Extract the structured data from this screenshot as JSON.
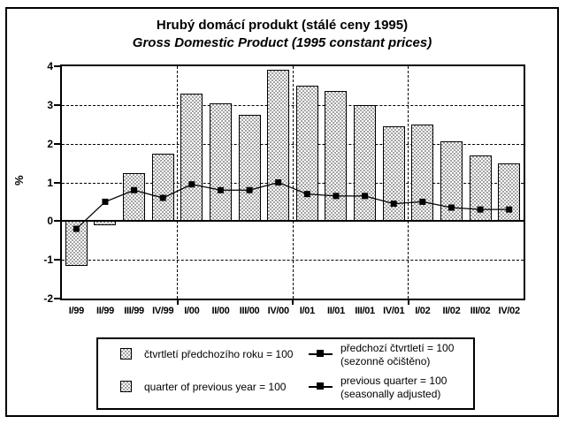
{
  "title": "Hrubý domácí produkt (stálé ceny 1995)",
  "subtitle": "Gross Domestic Product (1995 constant prices)",
  "chart_data": {
    "type": "bar",
    "title": "Hrubý domácí produkt (stálé ceny 1995) / Gross Domestic Product (1995 constant prices)",
    "categories": [
      "I/99",
      "II/99",
      "III/99",
      "IV/99",
      "I/00",
      "II/00",
      "III/00",
      "IV/00",
      "I/01",
      "II/01",
      "III/01",
      "IV/01",
      "I/02",
      "II/02",
      "III/02",
      "IV/02"
    ],
    "series": [
      {
        "name": "čtvrtletí předchozího roku = 100 (quarter of previous year = 100)",
        "type": "bar",
        "values": [
          -1.15,
          -0.1,
          1.25,
          1.75,
          3.3,
          3.05,
          2.75,
          3.9,
          3.5,
          3.35,
          3.0,
          2.45,
          2.5,
          2.05,
          1.7,
          1.5
        ]
      },
      {
        "name": "předchozí čtvrtletí = 100, sezonně očištěno (previous quarter = 100, seasonally adjusted)",
        "type": "line",
        "values": [
          -0.2,
          0.5,
          0.8,
          0.6,
          0.95,
          0.8,
          0.8,
          1.0,
          0.7,
          0.65,
          0.65,
          0.45,
          0.5,
          0.35,
          0.3,
          0.3
        ]
      }
    ],
    "xlabel": "",
    "ylabel": "%",
    "ylim": [
      -2,
      4
    ],
    "yticks": [
      4,
      3,
      2,
      1,
      0,
      -1,
      -2
    ],
    "ygrid_dashed": [
      3,
      2,
      1,
      -1
    ],
    "xgrid_dashed_after_category": [
      4,
      8,
      12
    ],
    "grid": "horizontal dashed at integers, vertical dashed at year boundaries",
    "legend_position": "bottom"
  },
  "legend": {
    "bar_cs": "čtvrtletí předchozího roku = 100",
    "bar_en": "quarter of previous year = 100",
    "line_cs": "předchozí čtvrtletí = 100",
    "line_cs_note": "(sezonně očištěno)",
    "line_en": "previous quarter = 100",
    "line_en_note": "(seasonally adjusted)"
  },
  "colors": {
    "bar_pattern_gray": "#a3a3a3",
    "bar_pattern_white": "#ffffff",
    "line": "#000000",
    "axis": "#000000",
    "text": "#000000",
    "background": "#ffffff"
  }
}
